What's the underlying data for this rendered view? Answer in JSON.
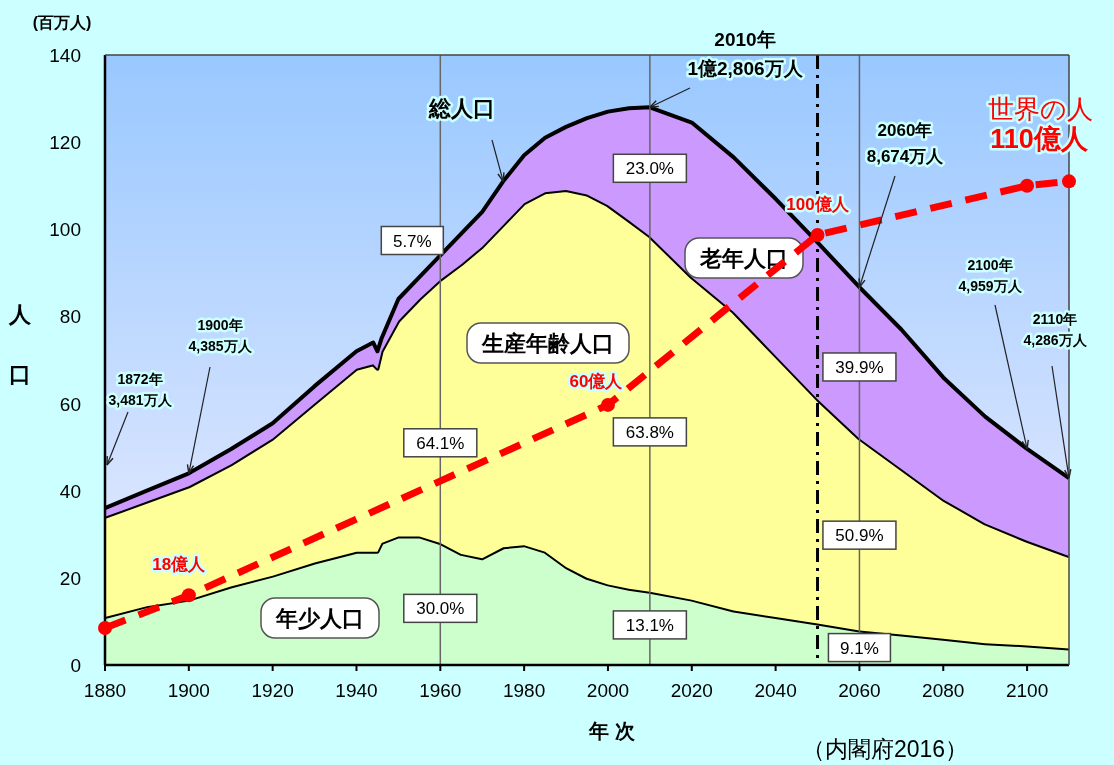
{
  "chart_data": {
    "type": "area",
    "stacked": true,
    "xlabel": "年 次",
    "ylabel": "人口",
    "xlim": [
      1880,
      2110
    ],
    "ylim": [
      0,
      140
    ],
    "xticks": [
      1880,
      1900,
      1920,
      1940,
      1960,
      1980,
      2000,
      2020,
      2040,
      2060,
      2080,
      2100
    ],
    "yticks": [
      0,
      20,
      40,
      60,
      80,
      100,
      120,
      140
    ],
    "x": [
      1880,
      1890,
      1900,
      1910,
      1920,
      1930,
      1940,
      1944,
      1945,
      1946,
      1950,
      1955,
      1960,
      1965,
      1970,
      1975,
      1980,
      1985,
      1990,
      1995,
      2000,
      2005,
      2010,
      2020,
      2030,
      2040,
      2050,
      2060,
      2070,
      2080,
      2090,
      2100,
      2110
    ],
    "series": [
      {
        "name": "年少人口",
        "color": "#ccffcc",
        "values": [
          11,
          13.5,
          15,
          18,
          20.5,
          23.5,
          26,
          26,
          26,
          28,
          29.5,
          29.5,
          28,
          25.5,
          24.5,
          27,
          27.5,
          26,
          22.5,
          20,
          18.5,
          17.5,
          16.8,
          15,
          12.5,
          11,
          9.5,
          7.9,
          7,
          6,
          5,
          4.5,
          3.8
        ]
      },
      {
        "name": "生産年齢人口",
        "color": "#ffff99",
        "values": [
          23,
          24,
          26,
          28,
          31.5,
          36.5,
          42,
          43,
          42,
          44,
          49.5,
          54.5,
          60.4,
          66.5,
          71.5,
          74,
          78.5,
          82.5,
          86.5,
          88,
          87,
          84.5,
          81.6,
          74,
          68.5,
          60,
          51.5,
          44.1,
          38,
          32,
          27.5,
          24,
          21.2
        ]
      },
      {
        "name": "老年人口",
        "color": "#cc99ff",
        "values": [
          2,
          2.5,
          3,
          3.5,
          3.5,
          4,
          4,
          5,
          4,
          3,
          5,
          5,
          5.6,
          7,
          8,
          10,
          11,
          12.5,
          14.5,
          17.5,
          21.5,
          25.8,
          29.6,
          35.5,
          35.5,
          36,
          36,
          34.7,
          32,
          28,
          24.5,
          21.1,
          17.9
        ]
      },
      {
        "name": "世界の人",
        "type": "line",
        "color": "#ff0000",
        "line_style": "dashed",
        "marker": "circle",
        "x": [
          1880,
          1900,
          2000,
          2050,
          2100,
          2110
        ],
        "values": [
          8.5,
          16,
          59.7,
          98.7,
          110,
          111
        ]
      }
    ],
    "ref_lines": [
      {
        "axis": "x",
        "value": 1960,
        "color": "#666666",
        "line_style": "solid"
      },
      {
        "axis": "x",
        "value": 2010,
        "color": "#666666",
        "line_style": "solid"
      },
      {
        "axis": "x",
        "value": 2060,
        "color": "#666666",
        "line_style": "solid"
      },
      {
        "axis": "x",
        "value": 2050,
        "color": "#000000",
        "line_style": "dashed"
      }
    ],
    "annotations": [
      {
        "text": "5.7%",
        "x": 1960,
        "y": 91
      },
      {
        "text": "64.1%",
        "x": 1960,
        "y": 51
      },
      {
        "text": "30.0%",
        "x": 1960,
        "y": 13
      },
      {
        "text": "23.0%",
        "x": 2010,
        "y": 114
      },
      {
        "text": "63.8%",
        "x": 2010,
        "y": 53.5
      },
      {
        "text": "13.1%",
        "x": 2010,
        "y": 9.2
      },
      {
        "text": "39.9%",
        "x": 2060,
        "y": 68.4
      },
      {
        "text": "50.9%",
        "x": 2060,
        "y": 29.8
      },
      {
        "text": "9.1%",
        "x": 2060,
        "y": 4
      },
      {
        "text": "2010年 1億2,806万人",
        "x": 2010,
        "y": 128
      },
      {
        "text": "2060年 8,674万人",
        "x": 2060,
        "y": 86.7
      },
      {
        "text": "2100年 4,959万人",
        "x": 2100,
        "y": 49.6
      },
      {
        "text": "2110年 4,286万人",
        "x": 2110,
        "y": 42.9
      },
      {
        "text": "1900年 4,385万人",
        "x": 1900,
        "y": 44
      },
      "1872年 3,481万人",
      {
        "text": "総人口",
        "x": 1975,
        "y": 111
      },
      {
        "text": "18億人",
        "x": 1900,
        "y": 16
      },
      {
        "text": "60億人",
        "x": 2000,
        "y": 59.7
      },
      {
        "text": "100億人",
        "x": 2050,
        "y": 98.7
      },
      {
        "text": "110億人",
        "x": 2100,
        "y": 110
      },
      "(百万人)",
      "（内閣府2016）"
    ]
  }
}
